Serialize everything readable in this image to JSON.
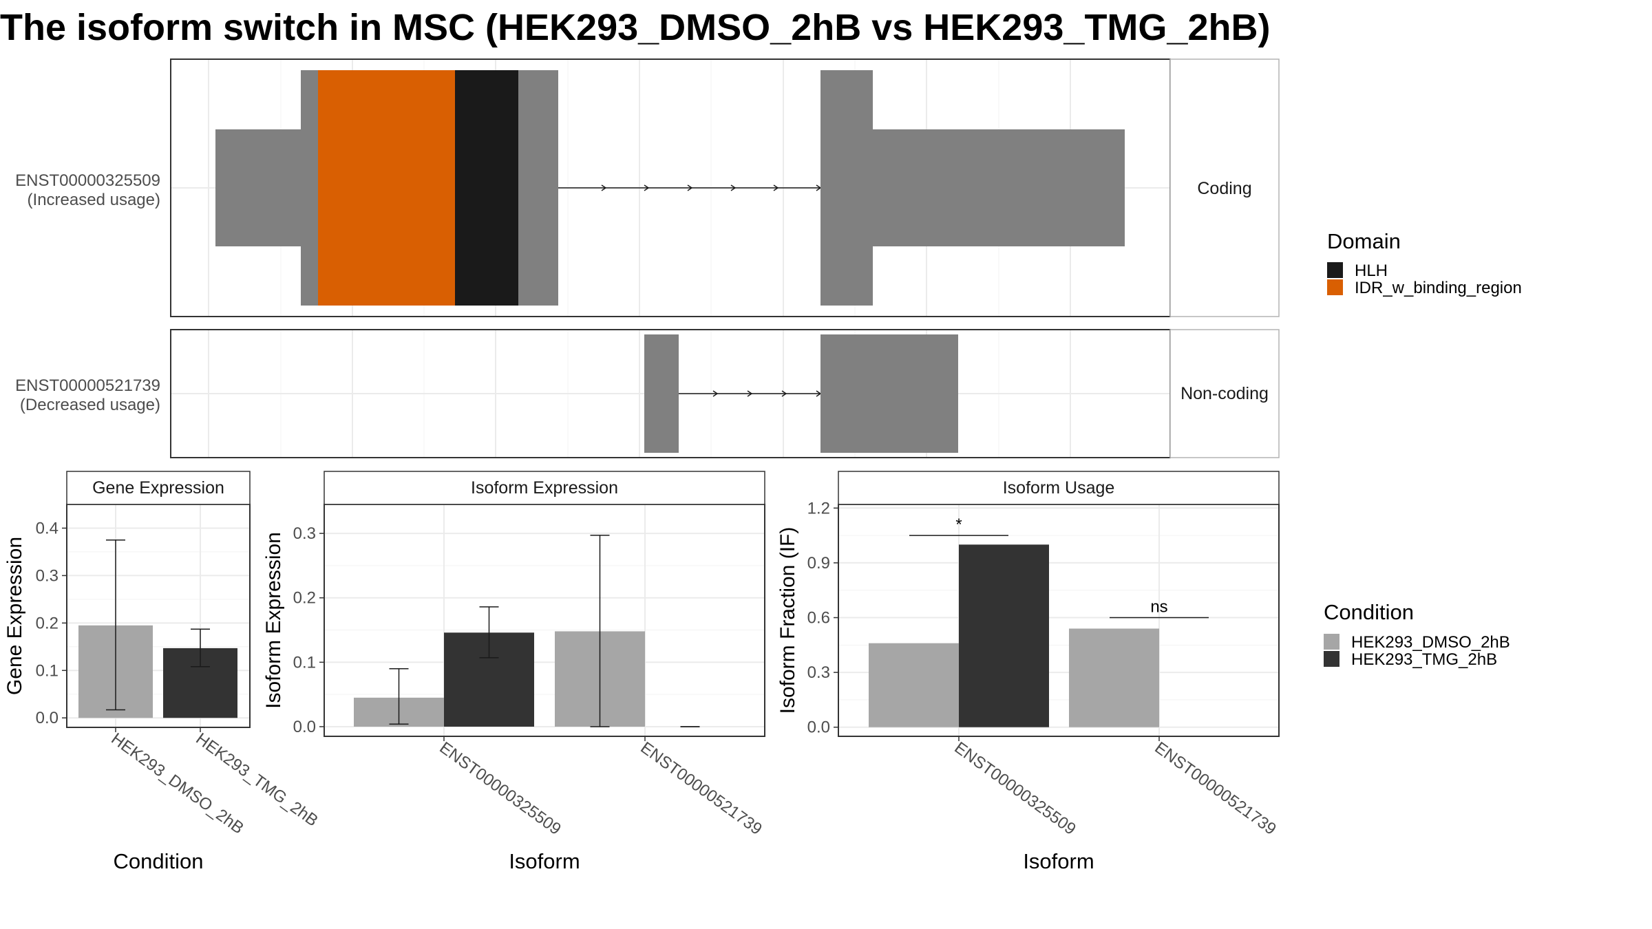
{
  "title": "The isoform switch in MSC (HEK293_DMSO_2hB vs HEK293_TMG_2hB)",
  "colors": {
    "exon": "#808080",
    "HLH": "#1a1a1a",
    "IDR_w_binding_region": "#d95f02",
    "HEK293_DMSO_2hB": "#a6a6a6",
    "HEK293_TMG_2hB": "#333333",
    "grid": "#ebebeb"
  },
  "transcripts": [
    {
      "id": "ENST00000325509",
      "usage": "(Increased usage)",
      "facet": "Coding"
    },
    {
      "id": "ENST00000521739",
      "usage": "(Decreased usage)",
      "facet": "Non-coding"
    }
  ],
  "legends": {
    "domain": {
      "title": "Domain",
      "items": [
        {
          "label": "HLH",
          "color": "#1a1a1a"
        },
        {
          "label": "IDR_w_binding_region",
          "color": "#d95f02"
        }
      ]
    },
    "condition": {
      "title": "Condition",
      "items": [
        {
          "label": "HEK293_DMSO_2hB",
          "color": "#a6a6a6"
        },
        {
          "label": "HEK293_TMG_2hB",
          "color": "#333333"
        }
      ]
    }
  },
  "chart_data": [
    {
      "type": "bar",
      "title": "Gene Expression",
      "xlabel": "Condition",
      "ylabel": "Gene Expression",
      "ylim": [
        -0.02,
        0.45
      ],
      "yticks": [
        "0.0",
        "0.1",
        "0.2",
        "0.3",
        "0.4"
      ],
      "categories": [
        "HEK293_DMSO_2hB",
        "HEK293_TMG_2hB"
      ],
      "values": [
        0.195,
        0.147
      ],
      "error_low": [
        0.017,
        0.108
      ],
      "error_high": [
        0.375,
        0.187
      ]
    },
    {
      "type": "bar",
      "title": "Isoform Expression",
      "xlabel": "Isoform",
      "ylabel": "Isoform Expression",
      "ylim": [
        -0.015,
        0.345
      ],
      "yticks": [
        "0.0",
        "0.1",
        "0.2",
        "0.3"
      ],
      "categories": [
        "ENST00000325509",
        "ENST00000521739"
      ],
      "series": [
        {
          "name": "HEK293_DMSO_2hB",
          "values": [
            0.045,
            0.148
          ],
          "error_low": [
            0.004,
            0.0
          ],
          "error_high": [
            0.09,
            0.297
          ]
        },
        {
          "name": "HEK293_TMG_2hB",
          "values": [
            0.146,
            0.0
          ],
          "error_low": [
            0.107,
            0.0
          ],
          "error_high": [
            0.186,
            0.0
          ]
        }
      ]
    },
    {
      "type": "bar",
      "title": "Isoform Usage",
      "xlabel": "Isoform",
      "ylabel": "Isoform Fraction (IF)",
      "ylim": [
        -0.05,
        1.22
      ],
      "yticks": [
        "0.0",
        "0.3",
        "0.6",
        "0.9",
        "1.2"
      ],
      "categories": [
        "ENST00000325509",
        "ENST00000521739"
      ],
      "series": [
        {
          "name": "HEK293_DMSO_2hB",
          "values": [
            0.46,
            0.54
          ]
        },
        {
          "name": "HEK293_TMG_2hB",
          "values": [
            1.0,
            0.0
          ]
        }
      ],
      "significance": [
        {
          "category": "ENST00000325509",
          "label": "*",
          "y": 1.05
        },
        {
          "category": "ENST00000521739",
          "label": "ns",
          "y": 0.6
        }
      ]
    }
  ]
}
